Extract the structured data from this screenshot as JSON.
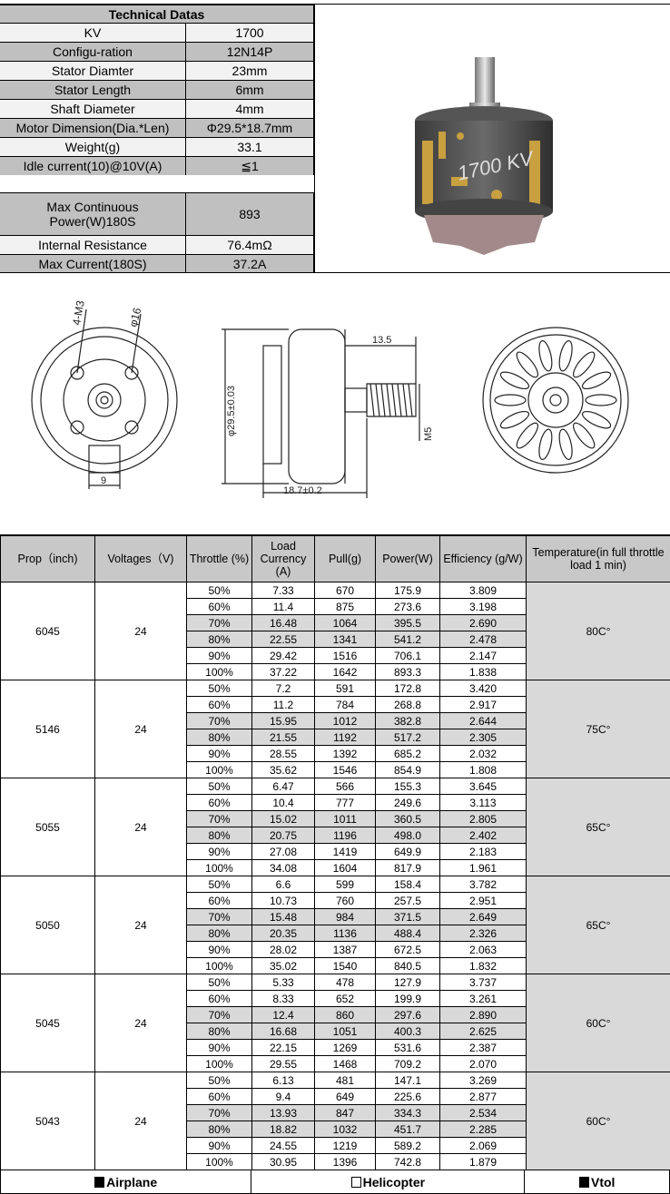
{
  "spec": {
    "title": "Technical Datas",
    "rows": [
      {
        "label": "KV",
        "value": "1700"
      },
      {
        "label": "Configu-ration",
        "value": "12N14P"
      },
      {
        "label": "Stator Diamter",
        "value": "23mm"
      },
      {
        "label": "Stator Length",
        "value": "6mm"
      },
      {
        "label": "Shaft Diameter",
        "value": "4mm"
      },
      {
        "label": "Motor Dimension(Dia.*Len)",
        "value": "Φ29.5*18.7mm"
      },
      {
        "label": "Weight(g)",
        "value": "33.1"
      },
      {
        "label": "Idle current(10)@10V(A)",
        "value": "≦1"
      },
      {
        "label": "Max Continuous Power(W)180S",
        "value": "893"
      },
      {
        "label": "Internal Resistance",
        "value": "76.4mΩ"
      },
      {
        "label": "Max Current(180S)",
        "value": "37.2A"
      }
    ]
  },
  "photo": {
    "label": "1700 KV"
  },
  "drawing": {
    "holes": "4-M3",
    "pcd": "φ16",
    "base_width": "9",
    "diameter": "φ29.5±0.03",
    "shaft_len": "13.5",
    "thread": "M5",
    "length": "18.7±0.2"
  },
  "table": {
    "headers": [
      "Prop（inch)",
      "Voltages（V)",
      "Throttle (%)",
      "Load Currency (A)",
      "Pull(g)",
      "Power(W)",
      "Efficiency (g/W)",
      "Temperature(in full throttle load 1 min)"
    ],
    "groups": [
      {
        "prop": "6045",
        "voltage": "24",
        "temp": "80C°",
        "rows": [
          [
            "50%",
            "7.33",
            "670",
            "175.9",
            "3.809"
          ],
          [
            "60%",
            "11.4",
            "875",
            "273.6",
            "3.198"
          ],
          [
            "70%",
            "16.48",
            "1064",
            "395.5",
            "2.690"
          ],
          [
            "80%",
            "22.55",
            "1341",
            "541.2",
            "2.478"
          ],
          [
            "90%",
            "29.42",
            "1516",
            "706.1",
            "2.147"
          ],
          [
            "100%",
            "37.22",
            "1642",
            "893.3",
            "1.838"
          ]
        ]
      },
      {
        "prop": "5146",
        "voltage": "24",
        "temp": "75C°",
        "rows": [
          [
            "50%",
            "7.2",
            "591",
            "172.8",
            "3.420"
          ],
          [
            "60%",
            "11.2",
            "784",
            "268.8",
            "2.917"
          ],
          [
            "70%",
            "15.95",
            "1012",
            "382.8",
            "2.644"
          ],
          [
            "80%",
            "21.55",
            "1192",
            "517.2",
            "2.305"
          ],
          [
            "90%",
            "28.55",
            "1392",
            "685.2",
            "2.032"
          ],
          [
            "100%",
            "35.62",
            "1546",
            "854.9",
            "1.808"
          ]
        ]
      },
      {
        "prop": "5055",
        "voltage": "24",
        "temp": "65C°",
        "rows": [
          [
            "50%",
            "6.47",
            "566",
            "155.3",
            "3.645"
          ],
          [
            "60%",
            "10.4",
            "777",
            "249.6",
            "3.113"
          ],
          [
            "70%",
            "15.02",
            "1011",
            "360.5",
            "2.805"
          ],
          [
            "80%",
            "20.75",
            "1196",
            "498.0",
            "2.402"
          ],
          [
            "90%",
            "27.08",
            "1419",
            "649.9",
            "2.183"
          ],
          [
            "100%",
            "34.08",
            "1604",
            "817.9",
            "1.961"
          ]
        ]
      },
      {
        "prop": "5050",
        "voltage": "24",
        "temp": "65C°",
        "rows": [
          [
            "50%",
            "6.6",
            "599",
            "158.4",
            "3.782"
          ],
          [
            "60%",
            "10.73",
            "760",
            "257.5",
            "2.951"
          ],
          [
            "70%",
            "15.48",
            "984",
            "371.5",
            "2.649"
          ],
          [
            "80%",
            "20.35",
            "1136",
            "488.4",
            "2.326"
          ],
          [
            "90%",
            "28.02",
            "1387",
            "672.5",
            "2.063"
          ],
          [
            "100%",
            "35.02",
            "1540",
            "840.5",
            "1.832"
          ]
        ]
      },
      {
        "prop": "5045",
        "voltage": "24",
        "temp": "60C°",
        "rows": [
          [
            "50%",
            "5.33",
            "478",
            "127.9",
            "3.737"
          ],
          [
            "60%",
            "8.33",
            "652",
            "199.9",
            "3.261"
          ],
          [
            "70%",
            "12.4",
            "860",
            "297.6",
            "2.890"
          ],
          [
            "80%",
            "16.68",
            "1051",
            "400.3",
            "2.625"
          ],
          [
            "90%",
            "22.15",
            "1269",
            "531.6",
            "2.387"
          ],
          [
            "100%",
            "29.55",
            "1468",
            "709.2",
            "2.070"
          ]
        ]
      },
      {
        "prop": "5043",
        "voltage": "24",
        "temp": "60C°",
        "rows": [
          [
            "50%",
            "6.13",
            "481",
            "147.1",
            "3.269"
          ],
          [
            "60%",
            "9.4",
            "649",
            "225.6",
            "2.877"
          ],
          [
            "70%",
            "13.93",
            "847",
            "334.3",
            "2.534"
          ],
          [
            "80%",
            "18.82",
            "1032",
            "451.7",
            "2.285"
          ],
          [
            "90%",
            "24.55",
            "1219",
            "589.2",
            "2.069"
          ],
          [
            "100%",
            "30.95",
            "1396",
            "742.8",
            "1.879"
          ]
        ]
      }
    ]
  },
  "legend": [
    {
      "label": "Airplane",
      "checked": true
    },
    {
      "label": "Helicopter",
      "checked": false
    },
    {
      "label": "Vtol",
      "checked": true
    }
  ]
}
